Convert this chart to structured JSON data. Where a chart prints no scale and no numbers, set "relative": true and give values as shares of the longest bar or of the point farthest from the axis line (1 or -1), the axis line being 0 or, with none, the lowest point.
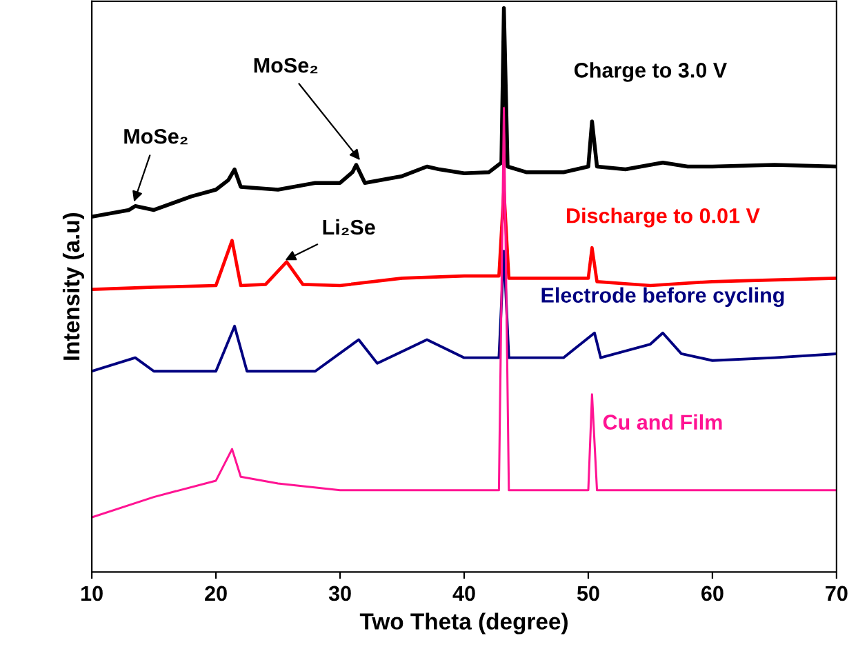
{
  "chart_data": {
    "type": "line",
    "xlabel": "Two Theta (degree)",
    "ylabel": "Intensity (a.u)",
    "relative": true,
    "xlim": [
      10,
      70
    ],
    "xticks": [
      10,
      20,
      30,
      40,
      50,
      60,
      70
    ],
    "legend": false,
    "grid": false,
    "series": [
      {
        "name": "Charge to 3.0 V",
        "color": "#000000",
        "x": [
          10,
          13,
          13.5,
          15,
          18,
          20,
          21,
          21.5,
          22,
          25,
          28,
          30,
          31,
          31.3,
          32,
          35,
          37,
          38,
          40,
          42,
          43,
          43.2,
          43.5,
          45,
          48,
          50,
          50.3,
          50.7,
          53,
          56,
          58,
          60,
          65,
          70
        ],
        "values": [
          0.63,
          0.642,
          0.649,
          0.642,
          0.666,
          0.678,
          0.695,
          0.714,
          0.683,
          0.678,
          0.69,
          0.69,
          0.709,
          0.722,
          0.69,
          0.702,
          0.719,
          0.714,
          0.707,
          0.709,
          0.726,
          1.0,
          0.719,
          0.709,
          0.709,
          0.719,
          0.799,
          0.719,
          0.714,
          0.726,
          0.719,
          0.719,
          0.722,
          0.719
        ]
      },
      {
        "name": "Discharge to 0.01 V",
        "color": "#ff0000",
        "x": [
          10,
          15,
          20,
          21.3,
          22,
          24,
          25.7,
          27,
          30,
          35,
          40,
          42.8,
          43.2,
          43.6,
          45,
          50,
          50.3,
          50.7,
          55,
          60,
          70
        ],
        "values": [
          0.501,
          0.505,
          0.508,
          0.588,
          0.508,
          0.51,
          0.55,
          0.51,
          0.508,
          0.521,
          0.525,
          0.525,
          0.678,
          0.521,
          0.521,
          0.521,
          0.575,
          0.515,
          0.508,
          0.515,
          0.521
        ]
      },
      {
        "name": "Electrode before cycling",
        "color": "#000080",
        "x": [
          10,
          13.5,
          15,
          20,
          21.5,
          22.5,
          28,
          31.5,
          33,
          37,
          40,
          42.8,
          43.2,
          43.6,
          48,
          50.5,
          51,
          55,
          56,
          57.5,
          60,
          65,
          70
        ],
        "values": [
          0.356,
          0.38,
          0.356,
          0.356,
          0.436,
          0.356,
          0.356,
          0.412,
          0.37,
          0.412,
          0.38,
          0.38,
          0.569,
          0.38,
          0.38,
          0.424,
          0.38,
          0.404,
          0.424,
          0.387,
          0.375,
          0.38,
          0.387
        ]
      },
      {
        "name": "Cu and Film",
        "color": "#ff1493",
        "x": [
          10,
          15,
          20,
          21.3,
          22,
          25,
          30,
          40,
          42.8,
          43.2,
          43.6,
          48,
          50,
          50.3,
          50.7,
          60,
          70
        ],
        "values": [
          0.097,
          0.133,
          0.162,
          0.218,
          0.169,
          0.157,
          0.145,
          0.145,
          0.145,
          0.823,
          0.145,
          0.145,
          0.145,
          0.315,
          0.145,
          0.145,
          0.145
        ]
      }
    ],
    "annotations": [
      {
        "text": "MoSe₂",
        "x": 13.3,
        "y": 0.65
      },
      {
        "text": "MoSe₂",
        "x": 31.8,
        "y": 0.725
      },
      {
        "text": "Li₂Se",
        "x": 25.3,
        "y": 0.55
      }
    ]
  }
}
